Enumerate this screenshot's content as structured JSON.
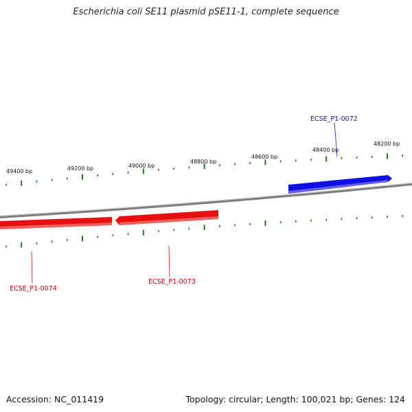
{
  "title": "Escherichia coli SE11 plasmid pSE11-1, complete sequence",
  "footer": {
    "accession": "Accession: NC_011419",
    "summary": "Topology: circular; Length: 100,021 bp; Genes: 124"
  },
  "colors": {
    "backbone": "#7f7f7f",
    "ticks": "#1a7a1a",
    "forward_gene": "#1010e0",
    "reverse_gene": "#e51010"
  },
  "scale_labels": [
    "49400 bp",
    "49200 bp",
    "49000 bp",
    "48800 bp",
    "48600 bp",
    "48400 bp",
    "48200 bp"
  ],
  "genes": [
    {
      "label": "ECSE_P1-0072",
      "strand": "forward",
      "color": "#1010e0"
    },
    {
      "label": "ECSE_P1-0073",
      "strand": "reverse",
      "color": "#e51010"
    },
    {
      "label": "ECSE_P1-0074",
      "strand": "reverse",
      "color": "#e51010"
    }
  ]
}
